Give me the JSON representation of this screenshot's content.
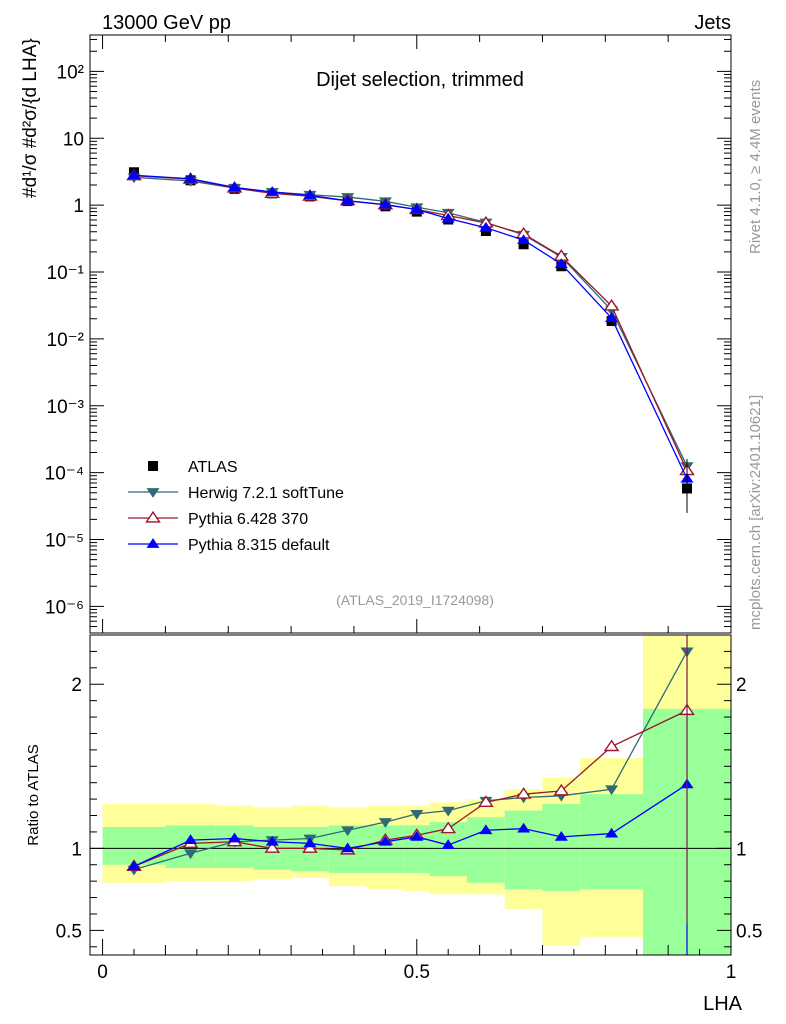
{
  "header": {
    "left": "13000 GeV pp",
    "right": "Jets"
  },
  "side": {
    "top": "Rivet 4.1.0, ≥ 4.4M events",
    "bottom": "mcplots.cern.ch [arXiv:2401.10621]"
  },
  "colors": {
    "atlas": "#000000",
    "herwig": "#2e6b75",
    "py6": "#99182a",
    "py8": "#0000ff",
    "band_inner": "#99ff99",
    "band_outer": "#ffff99"
  },
  "chart_data": {
    "type": "line",
    "title": "Dijet selection, trimmed",
    "analysis_label": "(ATLAS_2019_I1724098)",
    "xlabel": "LHA",
    "ylabel": "#d¹/σ #d²σ/{d LHA}",
    "ratio_ylabel": "Ratio to ATLAS",
    "xlim": [
      0,
      1
    ],
    "ylim_main": [
      4e-07,
      350
    ],
    "ylim_ratio": [
      0.35,
      2.3
    ],
    "x_ticks": [
      "0",
      "0.5",
      "1"
    ],
    "y_ticks_main": [
      "10⁻⁶",
      "10⁻⁵",
      "10⁻⁴",
      "10⁻³",
      "10⁻²",
      "10⁻¹",
      "1",
      "10",
      "10²"
    ],
    "y_ticks_ratio": [
      "0.5",
      "1",
      "2"
    ],
    "bins": [
      [
        0.0,
        0.1
      ],
      [
        0.1,
        0.18
      ],
      [
        0.18,
        0.24
      ],
      [
        0.24,
        0.3
      ],
      [
        0.3,
        0.36
      ],
      [
        0.36,
        0.42
      ],
      [
        0.42,
        0.48
      ],
      [
        0.48,
        0.52
      ],
      [
        0.52,
        0.58
      ],
      [
        0.58,
        0.64
      ],
      [
        0.64,
        0.7
      ],
      [
        0.7,
        0.76
      ],
      [
        0.76,
        0.86
      ],
      [
        0.86,
        1.0
      ]
    ],
    "x": [
      0.05,
      0.14,
      0.21,
      0.27,
      0.33,
      0.39,
      0.45,
      0.5,
      0.55,
      0.61,
      0.67,
      0.73,
      0.81,
      0.93
    ],
    "series": [
      {
        "name": "ATLAS",
        "marker": "square",
        "values": [
          3.1,
          2.35,
          1.75,
          1.5,
          1.35,
          1.15,
          0.96,
          0.8,
          0.61,
          0.41,
          0.26,
          0.122,
          0.0185,
          5.8e-05
        ]
      },
      {
        "name": "Herwig 7.2.1 softTune",
        "marker": "triangle-down",
        "values": [
          2.6,
          2.3,
          1.8,
          1.58,
          1.43,
          1.32,
          1.14,
          0.93,
          0.77,
          0.55,
          0.36,
          0.168,
          0.0268,
          0.000125
        ]
      },
      {
        "name": "Pythia 6.428 370",
        "marker": "triangle-open",
        "values": [
          2.75,
          2.45,
          1.8,
          1.5,
          1.36,
          1.16,
          1.01,
          0.86,
          0.7,
          0.54,
          0.37,
          0.172,
          0.031,
          0.000107
        ]
      },
      {
        "name": "Pythia 8.315 default",
        "marker": "triangle-up",
        "values": [
          2.8,
          2.48,
          1.84,
          1.57,
          1.4,
          1.16,
          1.02,
          0.86,
          0.63,
          0.46,
          0.3,
          0.132,
          0.0205,
          8.1e-05
        ]
      }
    ],
    "ratio": {
      "Herwig 7.2.1 softTune": [
        0.87,
        0.97,
        1.04,
        1.05,
        1.06,
        1.11,
        1.16,
        1.21,
        1.23,
        1.29,
        1.31,
        1.32,
        1.36,
        2.2
      ],
      "Pythia 6.428 370": [
        0.89,
        1.03,
        1.04,
        1.0,
        1.0,
        0.99,
        1.05,
        1.08,
        1.12,
        1.28,
        1.33,
        1.35,
        1.62,
        1.84
      ],
      "Pythia 8.315 default": [
        0.89,
        1.05,
        1.06,
        1.04,
        1.03,
        1.0,
        1.04,
        1.07,
        1.02,
        1.11,
        1.12,
        1.07,
        1.09,
        1.39
      ]
    },
    "band_inner": [
      [
        0.9,
        1.13
      ],
      [
        0.88,
        1.14
      ],
      [
        0.88,
        1.14
      ],
      [
        0.87,
        1.13
      ],
      [
        0.86,
        1.13
      ],
      [
        0.85,
        1.14
      ],
      [
        0.85,
        1.14
      ],
      [
        0.85,
        1.14
      ],
      [
        0.83,
        1.16
      ],
      [
        0.79,
        1.19
      ],
      [
        0.75,
        1.23
      ],
      [
        0.74,
        1.27
      ],
      [
        0.75,
        1.33
      ],
      [
        0.3,
        1.85
      ]
    ],
    "band_outer": [
      [
        0.79,
        1.27
      ],
      [
        0.8,
        1.27
      ],
      [
        0.8,
        1.26
      ],
      [
        0.81,
        1.25
      ],
      [
        0.82,
        1.26
      ],
      [
        0.77,
        1.25
      ],
      [
        0.75,
        1.26
      ],
      [
        0.74,
        1.26
      ],
      [
        0.72,
        1.28
      ],
      [
        0.72,
        1.3
      ],
      [
        0.63,
        1.36
      ],
      [
        0.41,
        1.43
      ],
      [
        0.46,
        1.55
      ],
      [
        0.3,
        2.35
      ]
    ],
    "legend": [
      "ATLAS",
      "Herwig 7.2.1 softTune",
      "Pythia 6.428 370",
      "Pythia 8.315 default"
    ]
  }
}
